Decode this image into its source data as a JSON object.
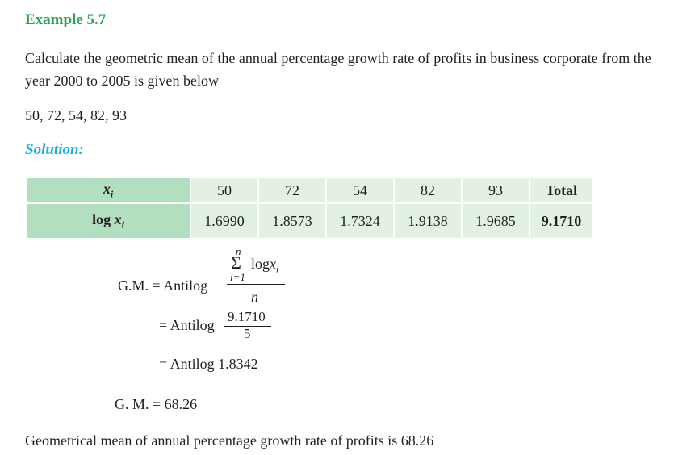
{
  "example_title": "Example 5.7",
  "question": {
    "line1": "Calculate the geometric mean of the annual percentage growth rate of profits in business corporate from the",
    "line2": "year 2000 to 2005 is given below",
    "values_line": "50, 72, 54, 82, 93"
  },
  "solution_label": "Solution:",
  "table": {
    "row1_label_var": "x",
    "row1_label_sub": "i",
    "row2_label_log": "log ",
    "row2_label_var": "x",
    "row2_label_sub": "i",
    "values": [
      "50",
      "72",
      "54",
      "82",
      "93"
    ],
    "total_label": "Total",
    "logs": [
      "1.6990",
      "1.8573",
      "1.7324",
      "1.9138",
      "1.9685"
    ],
    "total_log": "9.1710"
  },
  "formula": {
    "gm_label": "G.M. = Antilog",
    "sum_upper": "n",
    "sum_symbol": "Σ",
    "sum_log": "log",
    "sum_var": "x",
    "sum_sub": "i",
    "sum_lower": "i=1",
    "denominator": "n",
    "step2_label": "= Antilog",
    "step2_num": "9.1710",
    "step2_den": "5",
    "step3": "= Antilog 1.8342",
    "result": "G. M. = 68.26"
  },
  "conclusion": "Geometrical mean of annual percentage growth rate of profits is 68.26"
}
